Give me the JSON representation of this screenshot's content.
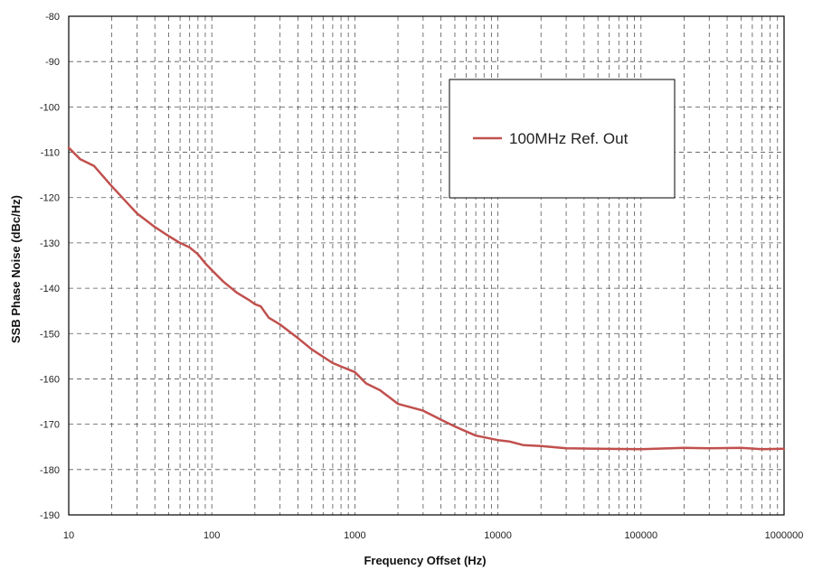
{
  "chart_data": {
    "type": "line",
    "title": "",
    "xlabel": "Frequency Offset (Hz)",
    "ylabel": "SSB Phase Noise (dBc/Hz)",
    "x_scale": "log",
    "xlim": [
      10,
      1000000
    ],
    "ylim": [
      -190,
      -80
    ],
    "x_ticks": [
      10,
      100,
      1000,
      10000,
      100000,
      1000000
    ],
    "x_tick_labels": [
      "10",
      "100",
      "1000",
      "10000",
      "100000",
      "1000000"
    ],
    "y_ticks": [
      -80,
      -90,
      -100,
      -110,
      -120,
      -130,
      -140,
      -150,
      -160,
      -170,
      -180,
      -190
    ],
    "y_tick_labels": [
      "-80",
      "-90",
      "-100",
      "-110",
      "-120",
      "-130",
      "-140",
      "-150",
      "-160",
      "-170",
      "-180",
      "-190"
    ],
    "grid": true,
    "legend_position": "top-right",
    "series": [
      {
        "name": "100MHz Ref. Out",
        "color": "#c0504d",
        "x": [
          10,
          12,
          15,
          20,
          30,
          40,
          50,
          60,
          70,
          80,
          90,
          100,
          120,
          150,
          180,
          200,
          220,
          250,
          300,
          400,
          500,
          700,
          1000,
          1200,
          1500,
          2000,
          3000,
          4000,
          5000,
          7000,
          10000,
          12000,
          15000,
          20000,
          30000,
          50000,
          100000,
          200000,
          300000,
          500000,
          700000,
          1000000
        ],
        "y": [
          -109,
          -111.5,
          -113,
          -117.5,
          -123.5,
          -126.5,
          -128.5,
          -130,
          -131,
          -132.5,
          -134.5,
          -136,
          -138.5,
          -141,
          -142.5,
          -143.5,
          -144,
          -146.5,
          -148,
          -151,
          -153.5,
          -156.5,
          -158.5,
          -161,
          -162.5,
          -165.5,
          -167,
          -169,
          -170.5,
          -172.5,
          -173.5,
          -173.8,
          -174.6,
          -174.8,
          -175.3,
          -175.4,
          -175.5,
          -175.2,
          -175.3,
          -175.2,
          -175.5,
          -175.4
        ]
      }
    ]
  }
}
